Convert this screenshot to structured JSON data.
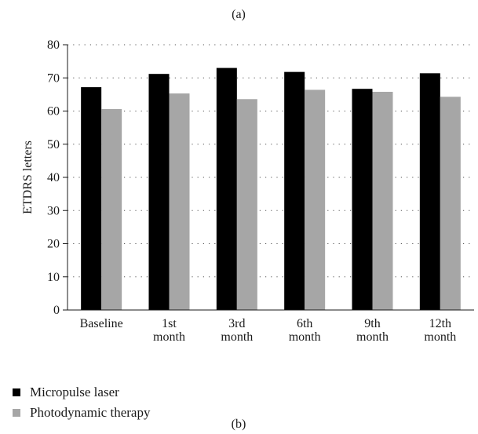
{
  "panel_top_label": "(a)",
  "panel_bottom_label": "(b)",
  "chart_data": {
    "type": "bar",
    "title": "",
    "xlabel": "",
    "ylabel": "ETDRS letters",
    "ylim": [
      0,
      80
    ],
    "yticks": [
      0,
      10,
      20,
      30,
      40,
      50,
      60,
      70,
      80
    ],
    "grid": "dotted horizontal",
    "legend_position": "bottom-left",
    "categories": [
      [
        "Baseline"
      ],
      [
        "1st",
        "month"
      ],
      [
        "3rd",
        "month"
      ],
      [
        "6th",
        "month"
      ],
      [
        "9th",
        "month"
      ],
      [
        "12th",
        "month"
      ]
    ],
    "series": [
      {
        "name": "Micropulse laser",
        "color": "#000000",
        "values": [
          67.2,
          71.2,
          73.0,
          71.8,
          66.7,
          71.4
        ]
      },
      {
        "name": "Photodynamic therapy",
        "color": "#a6a6a6",
        "values": [
          60.6,
          65.3,
          63.6,
          66.4,
          65.8,
          64.3
        ]
      }
    ]
  }
}
